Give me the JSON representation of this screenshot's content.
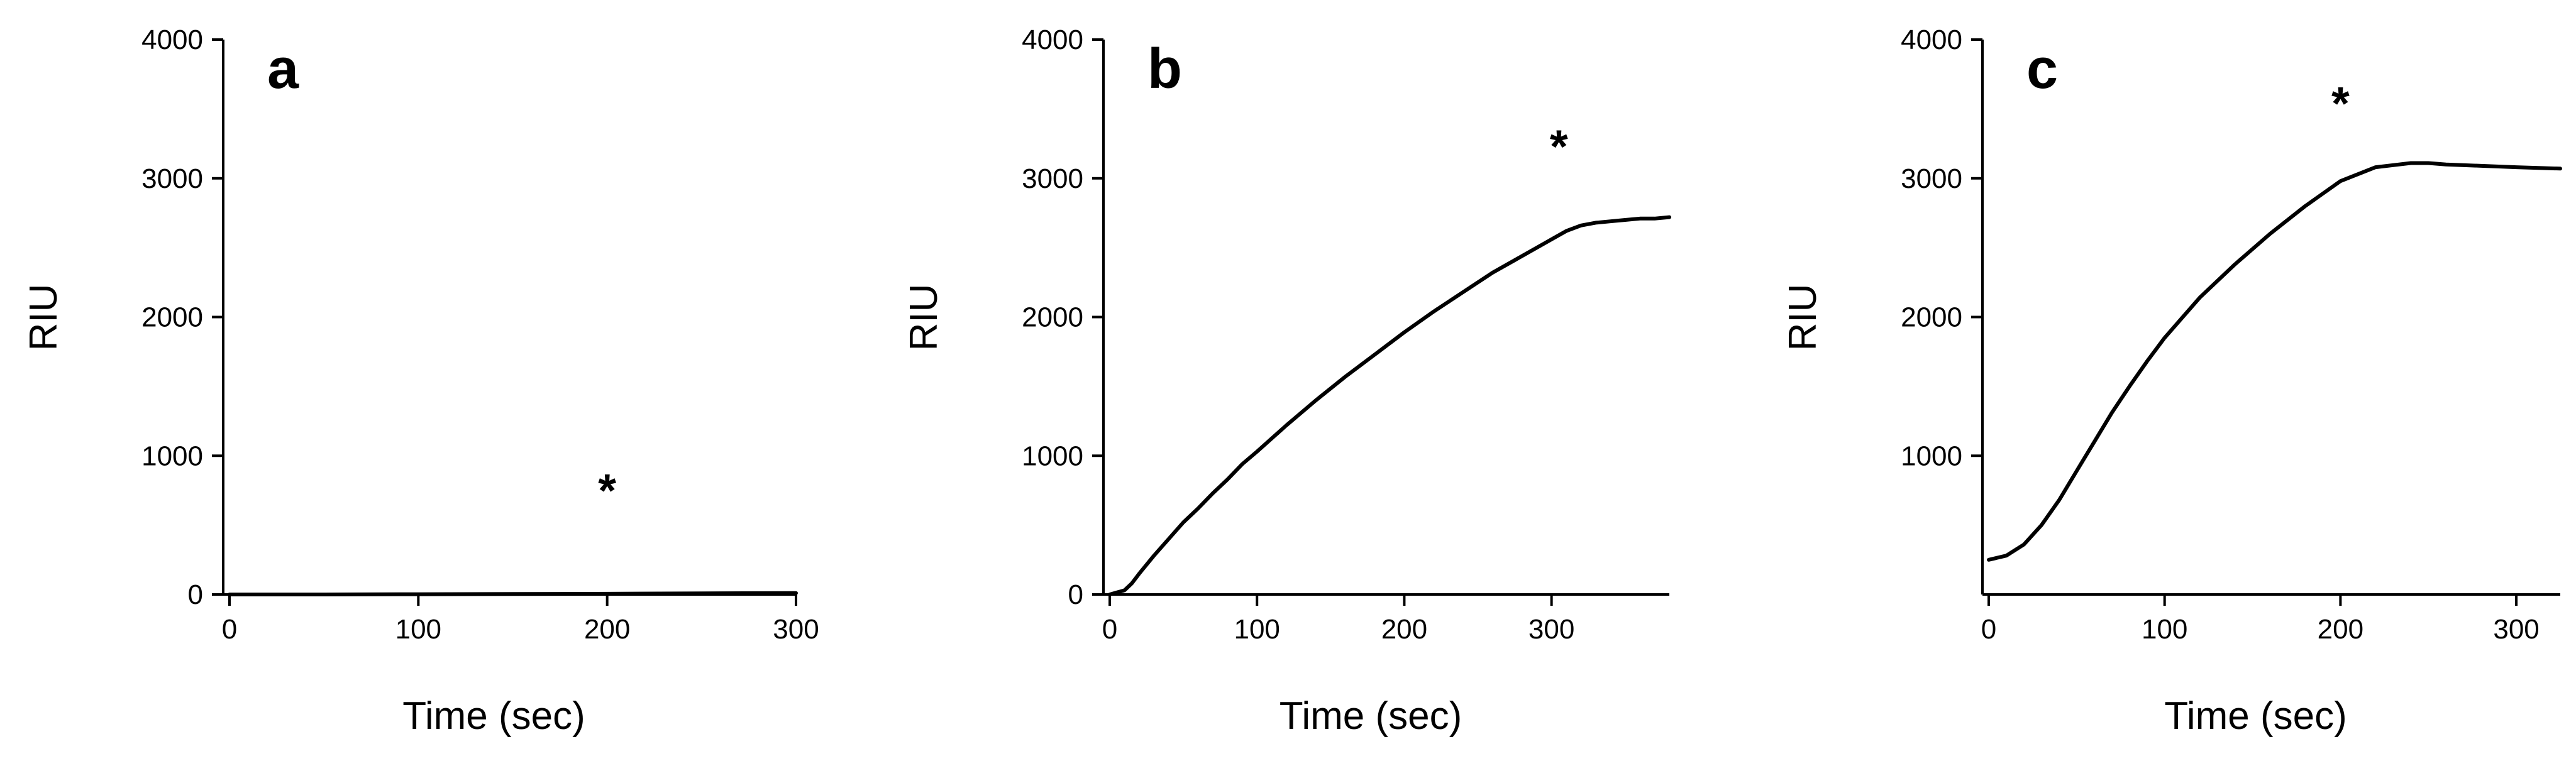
{
  "chart_data": [
    {
      "type": "line",
      "panel_label": "a",
      "xlabel": "Time (sec)",
      "ylabel": "RIU",
      "xlim": [
        0,
        300
      ],
      "ylim": [
        0,
        4000
      ],
      "xticks": [
        0,
        100,
        200,
        300
      ],
      "yticks": [
        0,
        1000,
        2000,
        3000,
        4000
      ],
      "grid": false,
      "annotations": [
        {
          "text": "*",
          "x": 200,
          "y": 770
        }
      ],
      "series": [
        {
          "x": [
            0,
            50,
            100,
            150,
            200,
            250,
            300
          ],
          "y": [
            0,
            0,
            2,
            3,
            5,
            8,
            10
          ]
        }
      ]
    },
    {
      "type": "line",
      "panel_label": "b",
      "xlabel": "Time (sec)",
      "ylabel": "RIU",
      "xlim": [
        0,
        380
      ],
      "ylim": [
        0,
        4000
      ],
      "xticks": [
        0,
        100,
        200,
        300
      ],
      "yticks": [
        0,
        1000,
        2000,
        3000,
        4000
      ],
      "grid": false,
      "annotations": [
        {
          "text": "*",
          "x": 305,
          "y": 3250
        }
      ],
      "series": [
        {
          "x": [
            0,
            10,
            15,
            20,
            30,
            40,
            50,
            60,
            70,
            80,
            90,
            100,
            120,
            140,
            160,
            180,
            200,
            220,
            240,
            260,
            280,
            300,
            310,
            320,
            330,
            340,
            350,
            360,
            370,
            380
          ],
          "y": [
            0,
            30,
            80,
            150,
            280,
            400,
            520,
            620,
            730,
            830,
            940,
            1030,
            1220,
            1400,
            1570,
            1730,
            1890,
            2040,
            2180,
            2320,
            2440,
            2560,
            2620,
            2660,
            2680,
            2690,
            2700,
            2710,
            2710,
            2720
          ]
        }
      ]
    },
    {
      "type": "line",
      "panel_label": "c",
      "xlabel": "Time (sec)",
      "ylabel": "RIU",
      "xlim": [
        0,
        325
      ],
      "ylim": [
        0,
        4000
      ],
      "xticks": [
        0,
        100,
        200,
        300
      ],
      "yticks": [
        1000,
        2000,
        3000,
        4000
      ],
      "grid": false,
      "annotations": [
        {
          "text": "*",
          "x": 200,
          "y": 3560
        }
      ],
      "series": [
        {
          "x": [
            0,
            10,
            20,
            30,
            40,
            50,
            60,
            70,
            80,
            90,
            100,
            120,
            140,
            160,
            180,
            200,
            220,
            240,
            250,
            260,
            280,
            300,
            325
          ],
          "y": [
            250,
            280,
            360,
            500,
            680,
            890,
            1100,
            1310,
            1500,
            1680,
            1850,
            2140,
            2380,
            2600,
            2800,
            2980,
            3080,
            3110,
            3110,
            3100,
            3090,
            3080,
            3070
          ]
        }
      ]
    }
  ]
}
